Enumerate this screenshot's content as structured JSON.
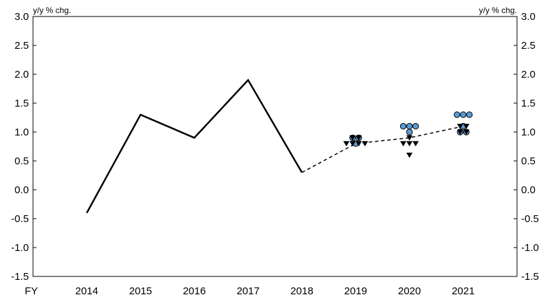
{
  "chart_data": {
    "type": "line",
    "xlabel": "FY",
    "y_unit_left": "y/y % chg.",
    "y_unit_right": "y/y % chg.",
    "ylim": [
      -1.5,
      3.0
    ],
    "yticks": [
      "3.0",
      "2.5",
      "2.0",
      "1.5",
      "1.0",
      "0.5",
      "0.0",
      "-0.5",
      "-1.0",
      "-1.5"
    ],
    "categories": [
      "2014",
      "2015",
      "2016",
      "2017",
      "2018",
      "2019",
      "2020",
      "2021"
    ],
    "actual": {
      "x": [
        "2014",
        "2015",
        "2016",
        "2017",
        "2018"
      ],
      "values": [
        -0.4,
        1.3,
        0.9,
        1.9,
        0.3
      ]
    },
    "projection": {
      "x": [
        "2018",
        "2019",
        "2020",
        "2021"
      ],
      "values": [
        0.3,
        0.8,
        0.9,
        1.1
      ]
    },
    "circles": [
      {
        "x": "2019",
        "values": [
          0.9,
          0.9,
          0.8
        ]
      },
      {
        "x": "2020",
        "values": [
          1.1,
          1.1,
          1.1,
          1.0
        ]
      },
      {
        "x": "2021",
        "values": [
          1.3,
          1.3,
          1.3,
          1.1,
          1.0,
          1.0
        ]
      }
    ],
    "triangles": [
      {
        "x": "2019",
        "values": [
          0.9,
          0.9,
          0.8,
          0.8,
          0.8,
          0.8
        ]
      },
      {
        "x": "2020",
        "values": [
          0.9,
          0.8,
          0.8,
          0.8,
          0.6
        ]
      },
      {
        "x": "2021",
        "values": [
          1.1,
          1.1,
          1.0,
          1.0
        ]
      }
    ],
    "colors": {
      "line": "#000000",
      "circle_fill": "#5b9bd5",
      "triangle_fill": "#000000"
    }
  }
}
